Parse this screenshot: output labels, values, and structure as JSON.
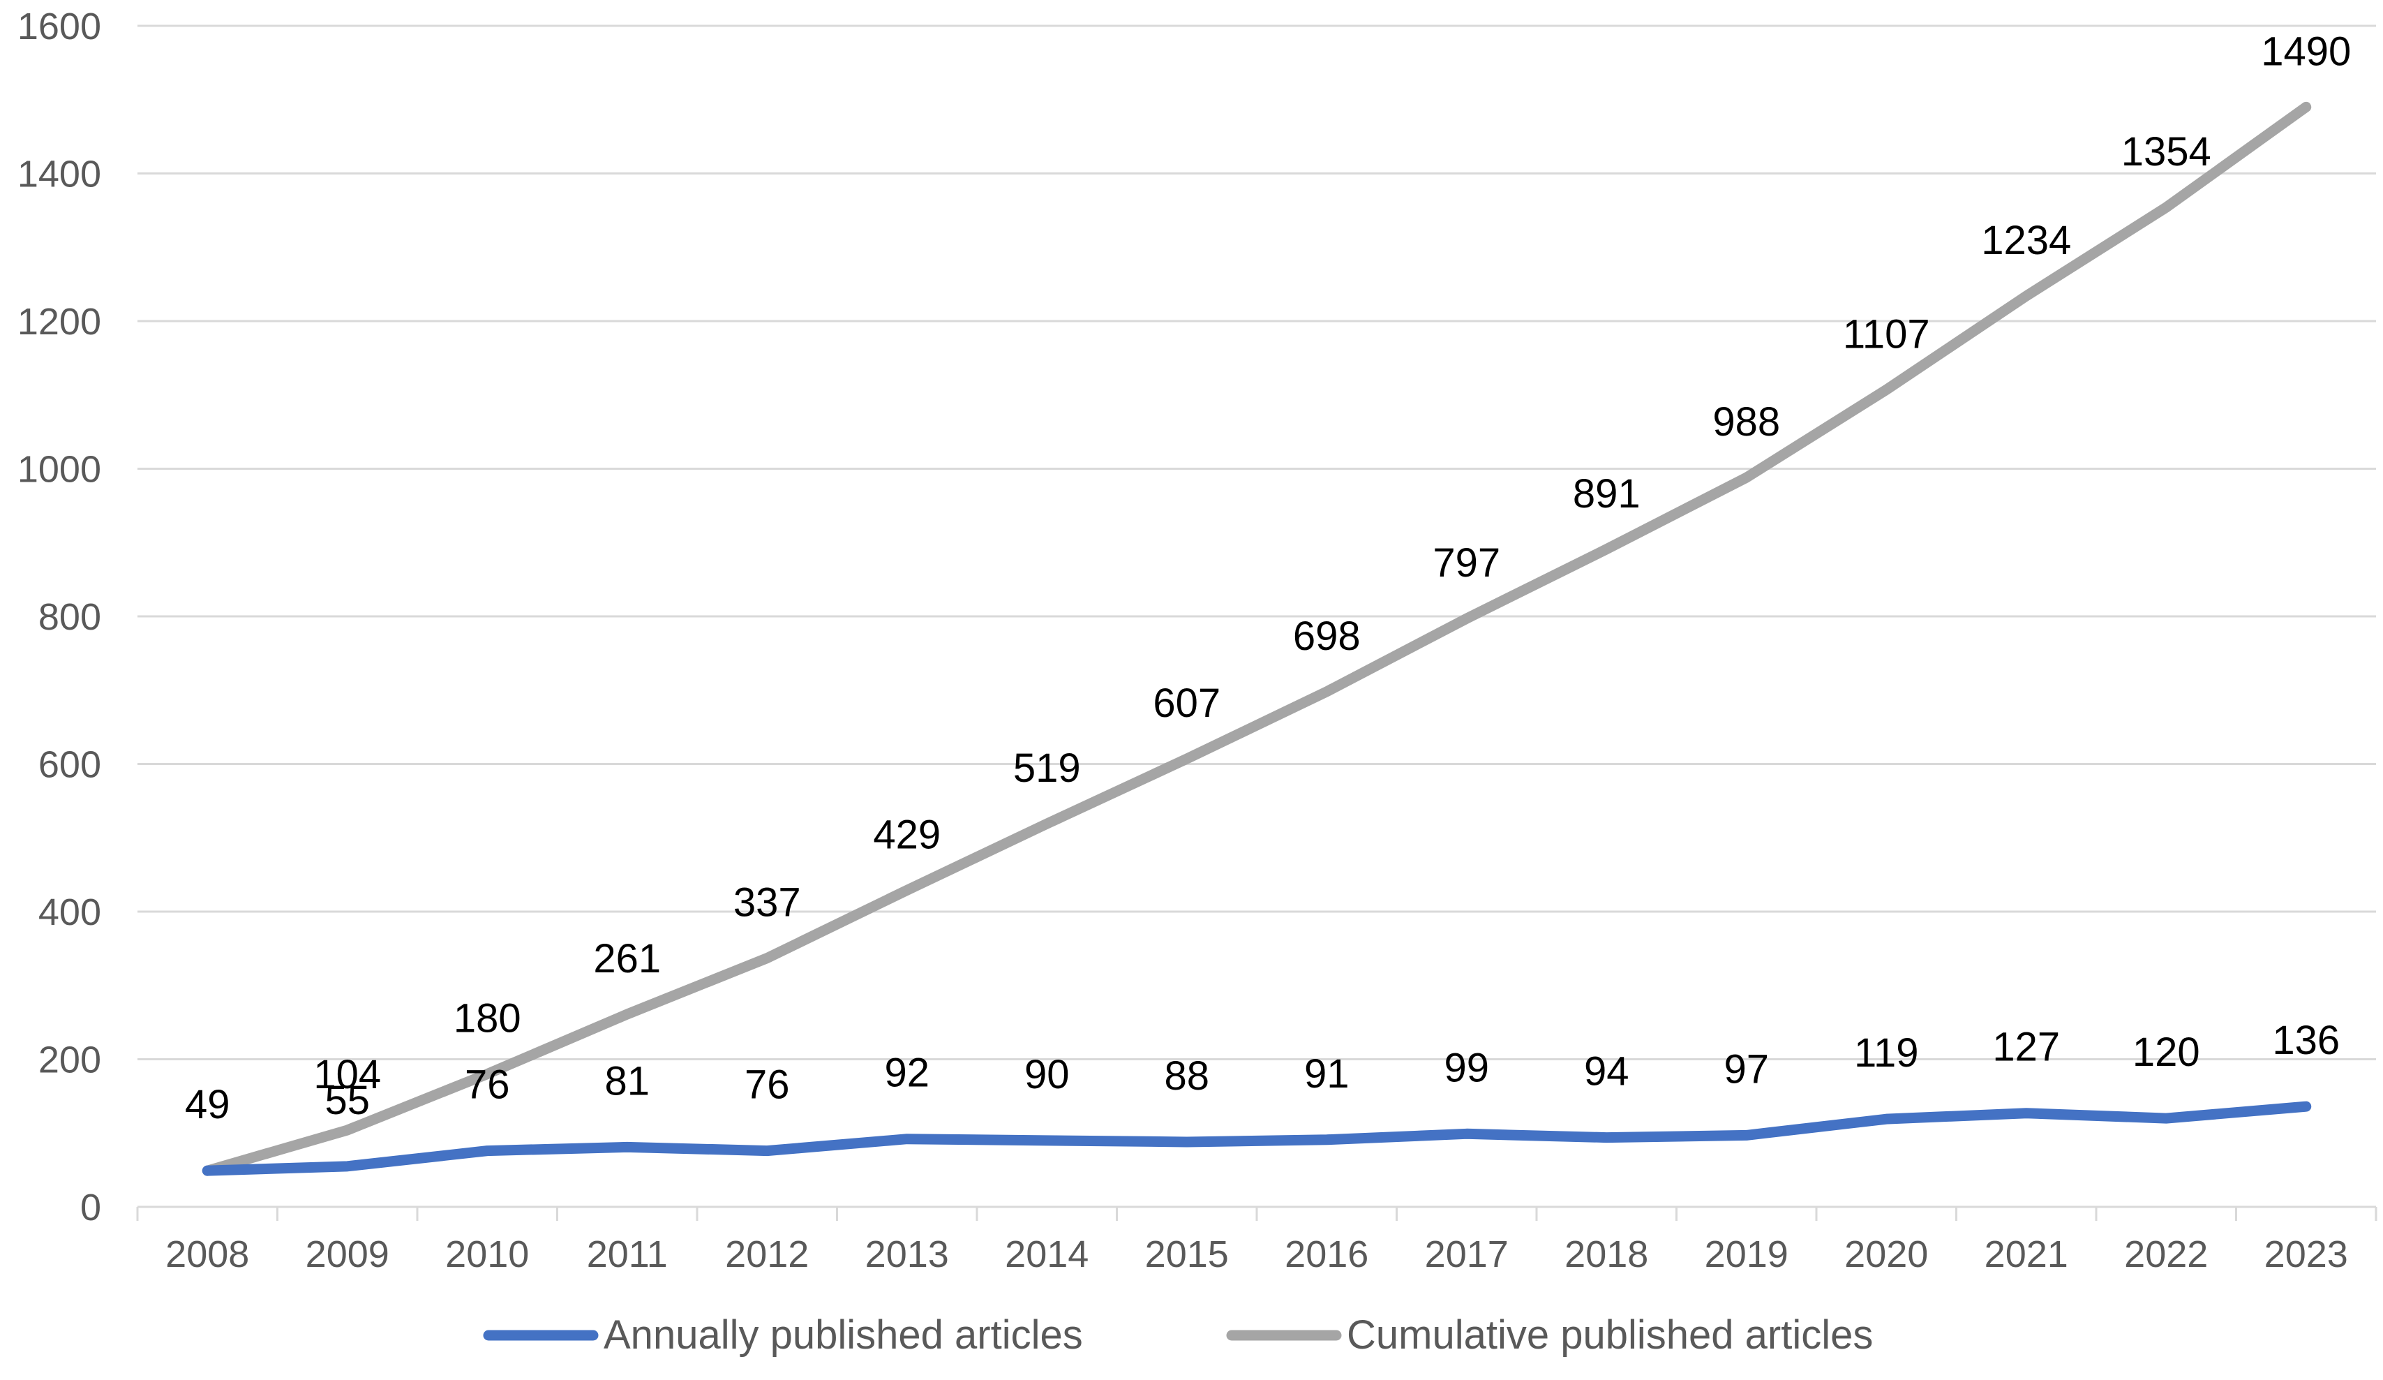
{
  "chart_data": {
    "type": "line",
    "title": "",
    "xlabel": "",
    "ylabel": "",
    "ylim": [
      0,
      1600
    ],
    "yticks": [
      0,
      200,
      400,
      600,
      800,
      1000,
      1200,
      1400,
      1600
    ],
    "grid": true,
    "legend_position": "bottom",
    "categories": [
      "2008",
      "2009",
      "2010",
      "2011",
      "2012",
      "2013",
      "2014",
      "2015",
      "2016",
      "2017",
      "2018",
      "2019",
      "2020",
      "2021",
      "2022",
      "2023"
    ],
    "series": [
      {
        "name": "Annually published articles",
        "color": "#4472C4",
        "values": [
          49,
          55,
          76,
          81,
          76,
          92,
          90,
          88,
          91,
          99,
          94,
          97,
          119,
          127,
          120,
          136
        ]
      },
      {
        "name": "Cumulative published articles",
        "color": "#A5A5A5",
        "values": [
          49,
          104,
          180,
          261,
          337,
          429,
          519,
          607,
          698,
          797,
          891,
          988,
          1107,
          1234,
          1354,
          1490
        ]
      }
    ]
  }
}
